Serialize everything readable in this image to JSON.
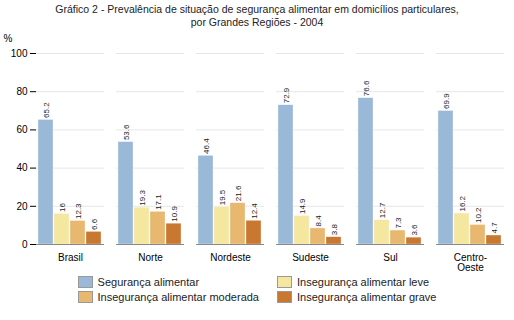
{
  "chart_data": {
    "type": "bar",
    "title": "Gráfico 2 - Prevalência de situação de segurança alimentar em domicílios particulares,\npor Grandes Regiões - 2004",
    "categories": [
      "Brasil",
      "Norte",
      "Nordeste",
      "Sudeste",
      "Sul",
      "Centro-\nOeste"
    ],
    "series": [
      {
        "name": "Segurança alimentar",
        "color": "#9ab9d8",
        "values": [
          65.2,
          53.6,
          46.4,
          72.9,
          76.6,
          69.9
        ]
      },
      {
        "name": "Insegurança alimentar leve",
        "color": "#f5e6a0",
        "values": [
          16.0,
          19.3,
          19.5,
          14.9,
          12.7,
          16.2
        ]
      },
      {
        "name": "Insegurança alimentar moderada",
        "color": "#e8b870",
        "values": [
          12.3,
          17.1,
          21.6,
          8.4,
          7.3,
          10.2
        ]
      },
      {
        "name": "Insegurança alimentar grave",
        "color": "#c87830",
        "values": [
          6.6,
          10.9,
          12.4,
          3.8,
          3.6,
          4.7
        ]
      }
    ],
    "ylabel": "%",
    "ylim": [
      0,
      100
    ],
    "yticks": [
      0,
      20,
      40,
      60,
      80,
      100
    ],
    "grid": true,
    "legend": "bottom",
    "data_labels": true
  }
}
